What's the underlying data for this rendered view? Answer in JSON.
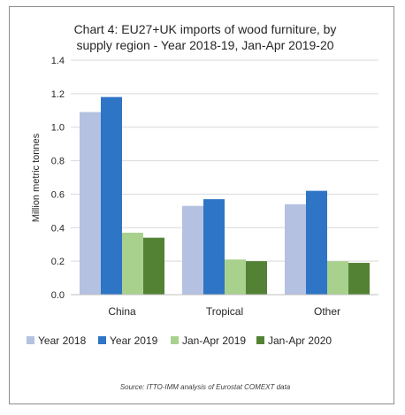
{
  "chart_data": {
    "type": "bar",
    "title_lines": [
      "Chart 4: EU27+UK imports of wood furniture, by",
      "supply region - Year 2018-19, Jan-Apr 2019-20"
    ],
    "ylabel": "Million metric tonnes",
    "xlabel": "",
    "ylim": [
      0,
      1.4
    ],
    "yticks": [
      "0.0",
      "0.2",
      "0.4",
      "0.6",
      "0.8",
      "1.0",
      "1.2",
      "1.4"
    ],
    "categories": [
      "China",
      "Tropical",
      "Other"
    ],
    "series": [
      {
        "name": "Year 2018",
        "color": "#b4c1e1",
        "values": [
          1.09,
          0.53,
          0.54
        ]
      },
      {
        "name": "Year 2019",
        "color": "#2e75c6",
        "values": [
          1.18,
          0.57,
          0.62
        ]
      },
      {
        "name": "Jan-Apr 2019",
        "color": "#a9d18e",
        "values": [
          0.37,
          0.21,
          0.2
        ]
      },
      {
        "name": "Jan-Apr 2020",
        "color": "#548235",
        "values": [
          0.34,
          0.2,
          0.19
        ]
      }
    ],
    "grid": true,
    "legend_position": "bottom"
  },
  "source": "Source: ITTO-IMM analysis of Eurostat COMEXT data"
}
